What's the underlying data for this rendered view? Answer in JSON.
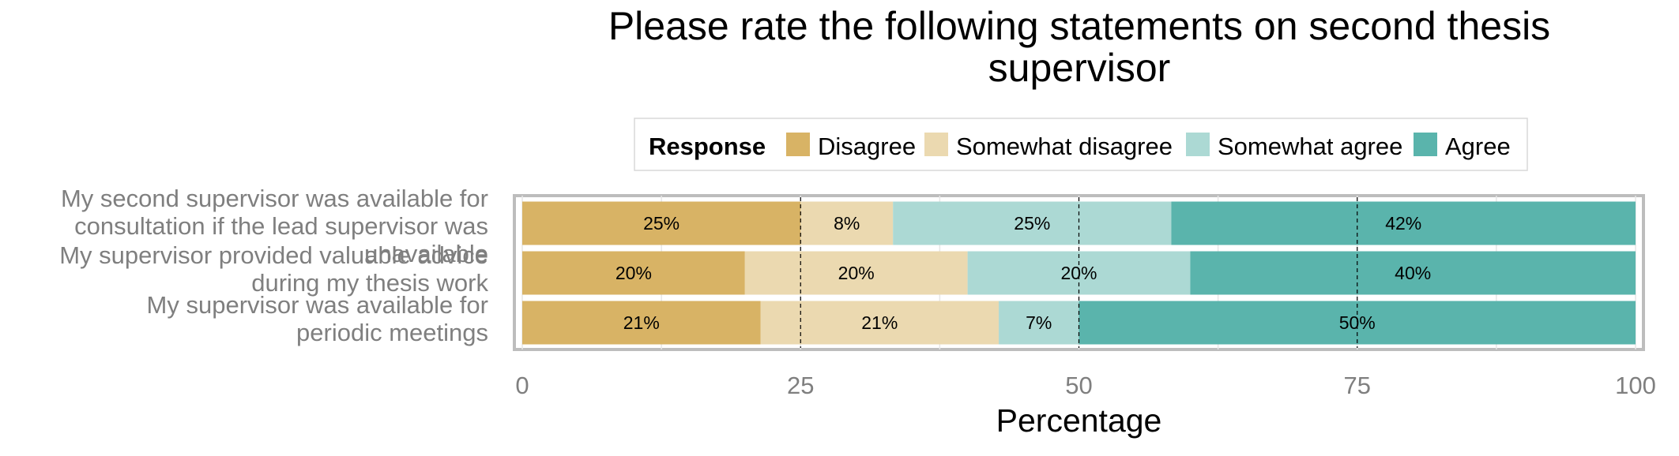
{
  "chart_data": {
    "type": "bar",
    "orientation": "horizontal",
    "stacked": true,
    "title_lines": [
      "Please rate the following statements on second thesis",
      "supervisor"
    ],
    "xlabel": "Percentage",
    "ylabel": "",
    "xlim": [
      0,
      100
    ],
    "x_ticks": [
      0,
      25,
      50,
      75,
      100
    ],
    "grid": true,
    "legend": {
      "title": "Response",
      "placement": "top",
      "entries": [
        "Disagree",
        "Somewhat disagree",
        "Somewhat agree",
        "Agree"
      ]
    },
    "categories": [
      {
        "lines": [
          "My second supervisor was available for",
          "consultation if the lead supervisor was",
          "unavailable"
        ]
      },
      {
        "lines": [
          "My supervisor provided valuable advice",
          "during my thesis work"
        ]
      },
      {
        "lines": [
          "My supervisor was available for",
          "periodic meetings"
        ]
      }
    ],
    "series": [
      {
        "name": "Disagree",
        "color": "#d8b365",
        "values": [
          25,
          20,
          21.4
        ],
        "labels": [
          "25%",
          "20%",
          "21%"
        ]
      },
      {
        "name": "Somewhat disagree",
        "color": "#ebd9b0",
        "values": [
          8.3,
          20,
          21.4
        ],
        "labels": [
          "8%",
          "20%",
          "21%"
        ]
      },
      {
        "name": "Somewhat agree",
        "color": "#acd9d4",
        "values": [
          25,
          20,
          7.2
        ],
        "labels": [
          "25%",
          "20%",
          "7%"
        ]
      },
      {
        "name": "Agree",
        "color": "#5ab4ac",
        "values": [
          41.7,
          40,
          50
        ],
        "labels": [
          "42%",
          "40%",
          "50%"
        ]
      }
    ],
    "reference_lines": [
      25,
      50,
      75
    ]
  }
}
